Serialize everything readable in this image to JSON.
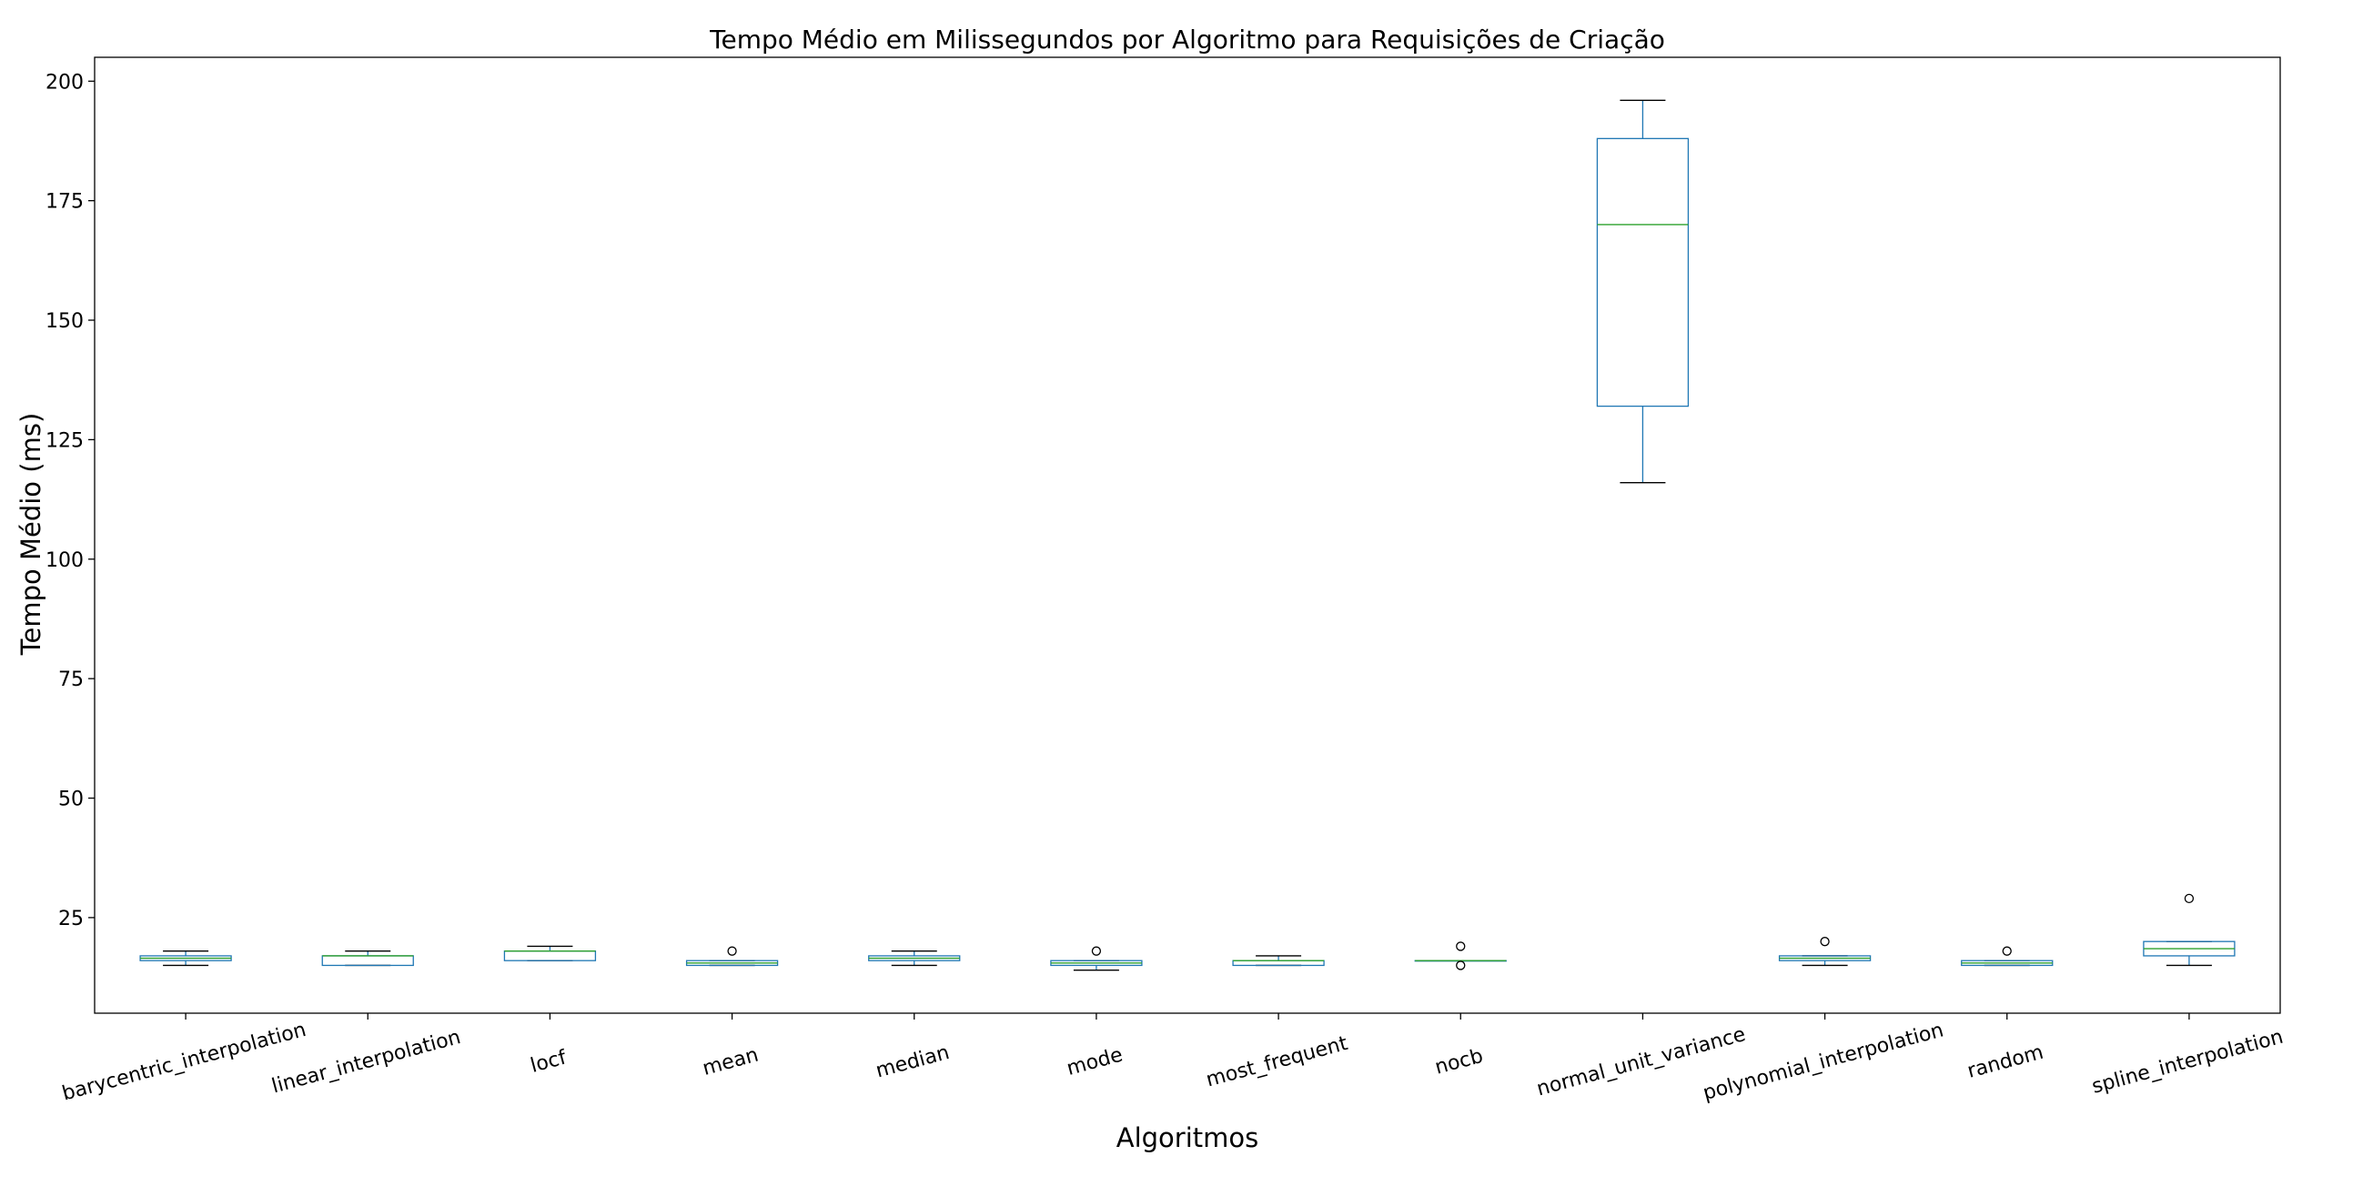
{
  "colors": {
    "box": "#1f77b4",
    "median": "#2ca02c",
    "whisker": "#1f77b4",
    "cap": "#000000",
    "flier": "#000000"
  },
  "chart_data": {
    "type": "box",
    "title": "Tempo Médio em Milissegundos por Algoritmo para Requisições de Criação",
    "xlabel": "Algoritmos",
    "ylabel": "Tempo Médio (ms)",
    "ylim": [
      5,
      205
    ],
    "yticks": [
      25,
      50,
      75,
      100,
      125,
      150,
      175,
      200
    ],
    "grid": false,
    "legend": "none",
    "categories": [
      "barycentric_interpolation",
      "linear_interpolation",
      "locf",
      "mean",
      "median",
      "mode",
      "most_frequent",
      "nocb",
      "normal_unit_variance",
      "polynomial_interpolation",
      "random",
      "spline_interpolation"
    ],
    "boxes": [
      {
        "whislo": 15,
        "q1": 16,
        "med": 16.5,
        "q3": 17,
        "whishi": 18,
        "fliers": []
      },
      {
        "whislo": 15,
        "q1": 15,
        "med": 17,
        "q3": 17,
        "whishi": 18,
        "fliers": []
      },
      {
        "whislo": 16,
        "q1": 16,
        "med": 18,
        "q3": 18,
        "whishi": 19,
        "fliers": []
      },
      {
        "whislo": 15,
        "q1": 15,
        "med": 15.5,
        "q3": 16,
        "whishi": 16,
        "fliers": [
          18
        ]
      },
      {
        "whislo": 15,
        "q1": 16,
        "med": 16.5,
        "q3": 17,
        "whishi": 18,
        "fliers": []
      },
      {
        "whislo": 14,
        "q1": 15,
        "med": 15.5,
        "q3": 16,
        "whishi": 16,
        "fliers": [
          18
        ]
      },
      {
        "whislo": 15,
        "q1": 15,
        "med": 16,
        "q3": 16,
        "whishi": 17,
        "fliers": []
      },
      {
        "whislo": 16,
        "q1": 16,
        "med": 16,
        "q3": 16,
        "whishi": 16,
        "fliers": [
          15,
          19
        ]
      },
      {
        "whislo": 116,
        "q1": 132,
        "med": 170,
        "q3": 188,
        "whishi": 196,
        "fliers": []
      },
      {
        "whislo": 15,
        "q1": 16,
        "med": 16.5,
        "q3": 17,
        "whishi": 17,
        "fliers": [
          20
        ]
      },
      {
        "whislo": 15,
        "q1": 15,
        "med": 15.5,
        "q3": 16,
        "whishi": 16,
        "fliers": [
          18
        ]
      },
      {
        "whislo": 15,
        "q1": 17,
        "med": 18.5,
        "q3": 20,
        "whishi": 20,
        "fliers": [
          29
        ]
      }
    ]
  }
}
